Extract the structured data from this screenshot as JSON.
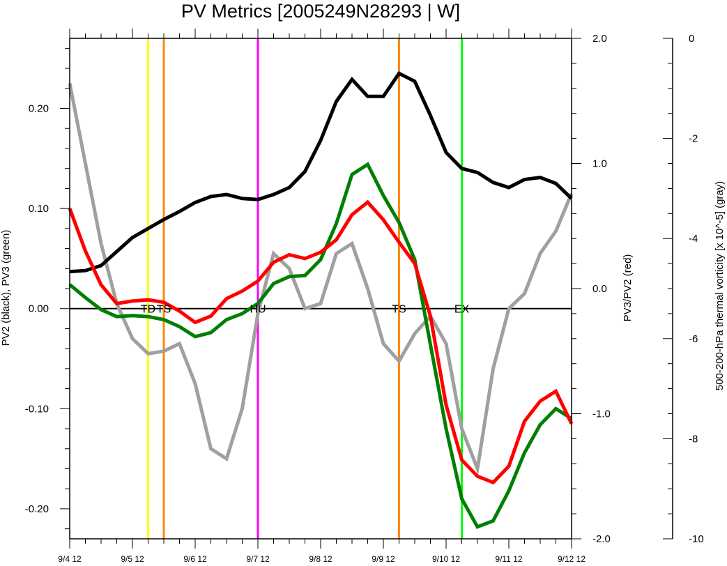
{
  "chart_data": {
    "type": "line",
    "title": "PV Metrics [2005249N28293 | W]",
    "x_tick_labels": [
      "9/4 12",
      "9/5 12",
      "9/6 12",
      "9/7 12",
      "9/8 12",
      "9/9 12",
      "9/10 12",
      "9/11 12",
      "9/12 12"
    ],
    "x_range_days": [
      0,
      8
    ],
    "left_axis": {
      "label": "PV2 (black), PV3 (green)",
      "range": [
        -0.23,
        0.27
      ],
      "ticks": [
        0.2,
        0.1,
        0.0,
        -0.1,
        -0.2
      ],
      "tick_labels": [
        "0.20",
        "0.10",
        "0.00",
        "-0.10",
        "-0.20"
      ]
    },
    "right_axis": {
      "label": "PV3/PV2 (red)",
      "range": [
        -2.0,
        2.0
      ],
      "ticks": [
        2.0,
        1.0,
        0.0,
        -1.0,
        -2.0
      ],
      "tick_labels": [
        "2.0",
        "1.0",
        "0.0",
        "-1.0",
        "-2.0"
      ]
    },
    "far_right_axis": {
      "label": "500-200-hPa thermal vorticity [x 10^-5] (gray)",
      "range": [
        -10,
        0
      ],
      "ticks": [
        0,
        -2,
        -4,
        -6,
        -8,
        -10
      ],
      "tick_labels": [
        "0",
        "-2",
        "-4",
        "-6",
        "-8",
        "-10"
      ]
    },
    "x": [
      0,
      0.25,
      0.5,
      0.75,
      1,
      1.25,
      1.5,
      1.75,
      2,
      2.25,
      2.5,
      2.75,
      3,
      3.25,
      3.5,
      3.75,
      4,
      4.25,
      4.5,
      4.75,
      5,
      5.25,
      5.5,
      5.75,
      6,
      6.25,
      6.5,
      6.75,
      7,
      7.25,
      7.5,
      7.75,
      8
    ],
    "series": [
      {
        "axis": "left",
        "color": "#000000",
        "values": [
          0.037,
          0.038,
          0.043,
          0.057,
          0.071,
          0.08,
          0.089,
          0.097,
          0.106,
          0.112,
          0.114,
          0.11,
          0.109,
          0.114,
          0.121,
          0.137,
          0.168,
          0.207,
          0.229,
          0.212,
          0.212,
          0.235,
          0.227,
          0.193,
          0.156,
          0.14,
          0.136,
          0.126,
          0.121,
          0.129,
          0.131,
          0.125,
          0.11
        ]
      },
      {
        "axis": "left",
        "color": "#008000",
        "values": [
          0.024,
          0.011,
          -0.001,
          -0.008,
          -0.007,
          -0.008,
          -0.011,
          -0.018,
          -0.028,
          -0.024,
          -0.011,
          -0.005,
          0.005,
          0.025,
          0.032,
          0.033,
          0.049,
          0.085,
          0.134,
          0.144,
          0.113,
          0.086,
          0.049,
          -0.036,
          -0.12,
          -0.19,
          -0.218,
          -0.212,
          -0.182,
          -0.144,
          -0.116,
          -0.1,
          -0.11
        ]
      },
      {
        "axis": "right",
        "color": "#ff0000",
        "values": [
          0.64,
          0.3,
          0.03,
          -0.12,
          -0.1,
          -0.09,
          -0.11,
          -0.18,
          -0.27,
          -0.22,
          -0.08,
          -0.02,
          0.06,
          0.21,
          0.27,
          0.24,
          0.29,
          0.39,
          0.59,
          0.69,
          0.55,
          0.37,
          0.2,
          -0.22,
          -0.93,
          -1.37,
          -1.5,
          -1.55,
          -1.42,
          -1.06,
          -0.9,
          -0.82,
          -1.08
        ]
      },
      {
        "axis": "far_right",
        "color": "#a0a0a0",
        "values": [
          -0.9,
          -2.5,
          -4.1,
          -5.3,
          -6.0,
          -6.3,
          -6.25,
          -6.1,
          -6.9,
          -8.2,
          -8.4,
          -7.4,
          -5.5,
          -4.3,
          -4.6,
          -5.4,
          -5.3,
          -4.3,
          -4.1,
          -5.0,
          -6.1,
          -6.45,
          -5.9,
          -5.55,
          -6.1,
          -7.8,
          -8.6,
          -6.6,
          -5.4,
          -5.1,
          -4.3,
          -3.85,
          -3.1
        ]
      }
    ],
    "events": [
      {
        "x": 1.25,
        "color": "#ffff00",
        "label": "TD"
      },
      {
        "x": 1.5,
        "color": "#ff8800",
        "label": "TS"
      },
      {
        "x": 3.0,
        "color": "#ff00ff",
        "label": "HU"
      },
      {
        "x": 5.25,
        "color": "#ff8800",
        "label": "TS"
      },
      {
        "x": 6.25,
        "color": "#00ff00",
        "label": "EX"
      }
    ]
  }
}
